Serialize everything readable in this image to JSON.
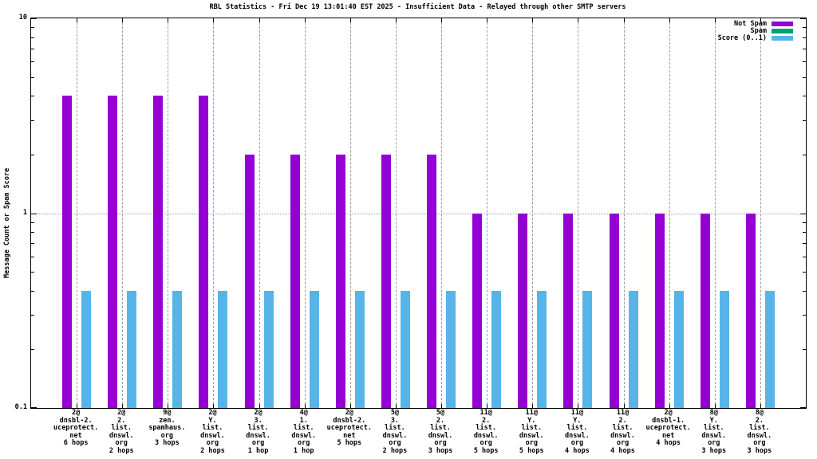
{
  "chart_data": {
    "type": "bar",
    "title": "RBL Statistics - Fri Dec 19 13:01:40 EST 2025 - Insufficient Data - Relayed through other SMTP servers",
    "ylabel": "Message Count or Spam Score",
    "xlabel": "",
    "yscale": "log",
    "ylim": [
      0.1,
      10
    ],
    "ytick_values": [
      10,
      1,
      0.1
    ],
    "ytick_labels": [
      "10",
      "1",
      "0.1"
    ],
    "yminor_values": [
      9,
      8,
      7,
      6,
      5,
      4,
      3,
      2,
      0.9,
      0.8,
      0.7,
      0.6,
      0.5,
      0.4,
      0.3,
      0.2
    ],
    "grid": {
      "vertical": "dashed at every category",
      "horizontal_dotted_at": 1
    },
    "legend_position": "top-right inside",
    "background_color": "#ffffff",
    "axis_color": "#000000",
    "grid_color": "#9c9c9c",
    "categories": [
      [
        "2@",
        "dnsbl-2.",
        "uceprotect.",
        "net",
        "6 hops"
      ],
      [
        "2@",
        "2.",
        "list.",
        "dnswl.",
        "org",
        "2 hops"
      ],
      [
        "9@",
        "zen.",
        "spamhaus.",
        "org",
        "3 hops"
      ],
      [
        "2@",
        "Y.",
        "list.",
        "dnswl.",
        "org",
        "2 hops"
      ],
      [
        "2@",
        "3.",
        "list.",
        "dnswl.",
        "org",
        "1 hop"
      ],
      [
        "4@",
        "1.",
        "list.",
        "dnswl.",
        "org",
        "1 hop"
      ],
      [
        "2@",
        "dnsbl-2.",
        "uceprotect.",
        "net",
        "5 hops"
      ],
      [
        "5@",
        "3.",
        "list.",
        "dnswl.",
        "org",
        "2 hops"
      ],
      [
        "5@",
        "2.",
        "list.",
        "dnswl.",
        "org",
        "3 hops"
      ],
      [
        "11@",
        "2.",
        "list.",
        "dnswl.",
        "org",
        "5 hops"
      ],
      [
        "11@",
        "Y.",
        "list.",
        "dnswl.",
        "org",
        "5 hops"
      ],
      [
        "11@",
        "Y.",
        "list.",
        "dnswl.",
        "org",
        "4 hops"
      ],
      [
        "11@",
        "2.",
        "list.",
        "dnswl.",
        "org",
        "4 hops"
      ],
      [
        "2@",
        "dnsbl-1.",
        "uceprotect.",
        "net",
        "4 hops"
      ],
      [
        "8@",
        "Y.",
        "list.",
        "dnswl.",
        "org",
        "3 hops"
      ],
      [
        "8@",
        "2.",
        "list.",
        "dnswl.",
        "org",
        "3 hops"
      ]
    ],
    "series": [
      {
        "name": "Not Spam",
        "color": "#9400d3",
        "values": [
          4,
          4,
          4,
          4,
          2,
          2,
          2,
          2,
          2,
          1,
          1,
          1,
          1,
          1,
          1,
          1
        ]
      },
      {
        "name": "Spam",
        "color": "#009e73",
        "values": [
          0,
          0,
          0,
          0,
          0,
          0,
          0,
          0,
          0,
          0,
          0,
          0,
          0,
          0,
          0,
          0
        ]
      },
      {
        "name": "Score (0..1)",
        "color": "#56b4e9",
        "values": [
          0.4,
          0.4,
          0.4,
          0.4,
          0.4,
          0.4,
          0.4,
          0.4,
          0.4,
          0.4,
          0.4,
          0.4,
          0.4,
          0.4,
          0.4,
          0.4
        ]
      }
    ]
  }
}
